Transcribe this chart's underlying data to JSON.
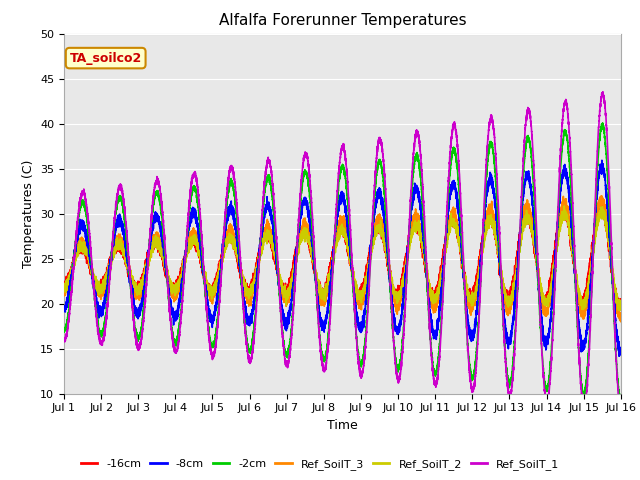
{
  "title": "Alfalfa Forerunner Temperatures",
  "xlabel": "Time",
  "ylabel": "Temperatures (C)",
  "ylim": [
    10,
    50
  ],
  "annotation_text": "TA_soilco2",
  "background_color": "#e8e8e8",
  "line_colors": {
    "-16cm": "#ff0000",
    "-8cm": "#0000ff",
    "-2cm": "#00cc00",
    "Ref_SoilT_3": "#ff8800",
    "Ref_SoilT_2": "#cccc00",
    "Ref_SoilT_1": "#cc00cc"
  },
  "legend_colors": [
    "#ff0000",
    "#0000ff",
    "#00cc00",
    "#ff8800",
    "#cccc00",
    "#cc00cc"
  ],
  "legend_labels": [
    "-16cm",
    "-8cm",
    "-2cm",
    "Ref_SoilT_3",
    "Ref_SoilT_2",
    "Ref_SoilT_1"
  ],
  "xtick_labels": [
    "Jul 1",
    "Jul 2",
    "Jul 3",
    "Jul 4",
    "Jul 5",
    "Jul 6",
    "Jul 7",
    "Jul 8",
    "Jul 9",
    "Jul 10",
    "Jul 11",
    "Jul 12",
    "Jul 13",
    "Jul 14",
    "Jul 15",
    "Jul 16"
  ],
  "xtick_positions": [
    0,
    1,
    2,
    3,
    4,
    5,
    6,
    7,
    8,
    9,
    10,
    11,
    12,
    13,
    14,
    15
  ],
  "yticks": [
    10,
    15,
    20,
    25,
    30,
    35,
    40,
    45,
    50
  ]
}
